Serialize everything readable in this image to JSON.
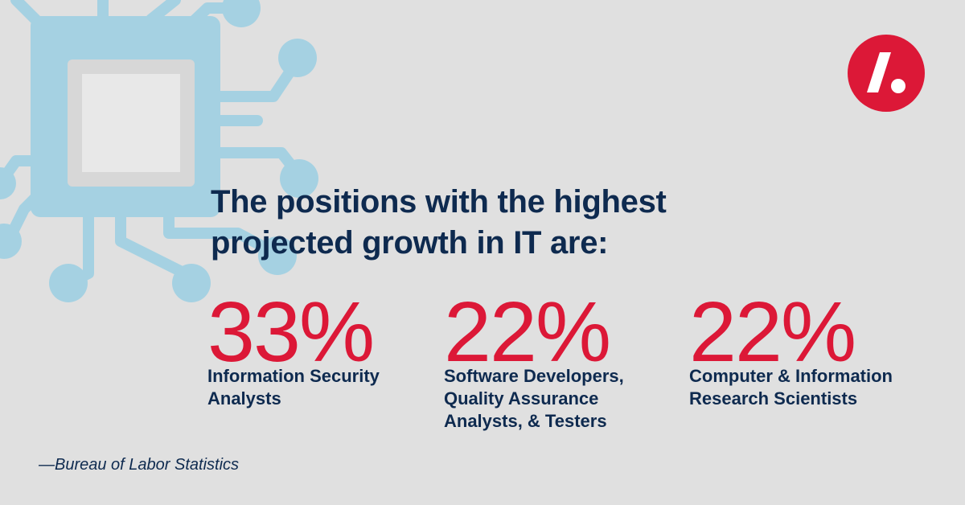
{
  "graphic": {
    "chip_icon": "circuit-chip-icon",
    "chip_color": "#a5d1e2",
    "chip_core_color": "#e8e8e8"
  },
  "logo": {
    "icon": "slash-dot-logo-icon",
    "color": "#dc1837"
  },
  "headline": {
    "line1": "The positions with the highest",
    "line2": "projected growth in IT are:"
  },
  "stats": [
    {
      "value": "33%",
      "label_lines": [
        "Information Security",
        "Analysts"
      ]
    },
    {
      "value": "22%",
      "label_lines": [
        "Software Developers,",
        "Quality Assurance",
        "Analysts, & Testers"
      ]
    },
    {
      "value": "22%",
      "label_lines": [
        "Computer & Information",
        "Research Scientists"
      ]
    }
  ],
  "source": "—Bureau of Labor Statistics",
  "colors": {
    "background": "#e0e0e0",
    "navy": "#0e2a4f",
    "accent_red": "#dc1837"
  }
}
